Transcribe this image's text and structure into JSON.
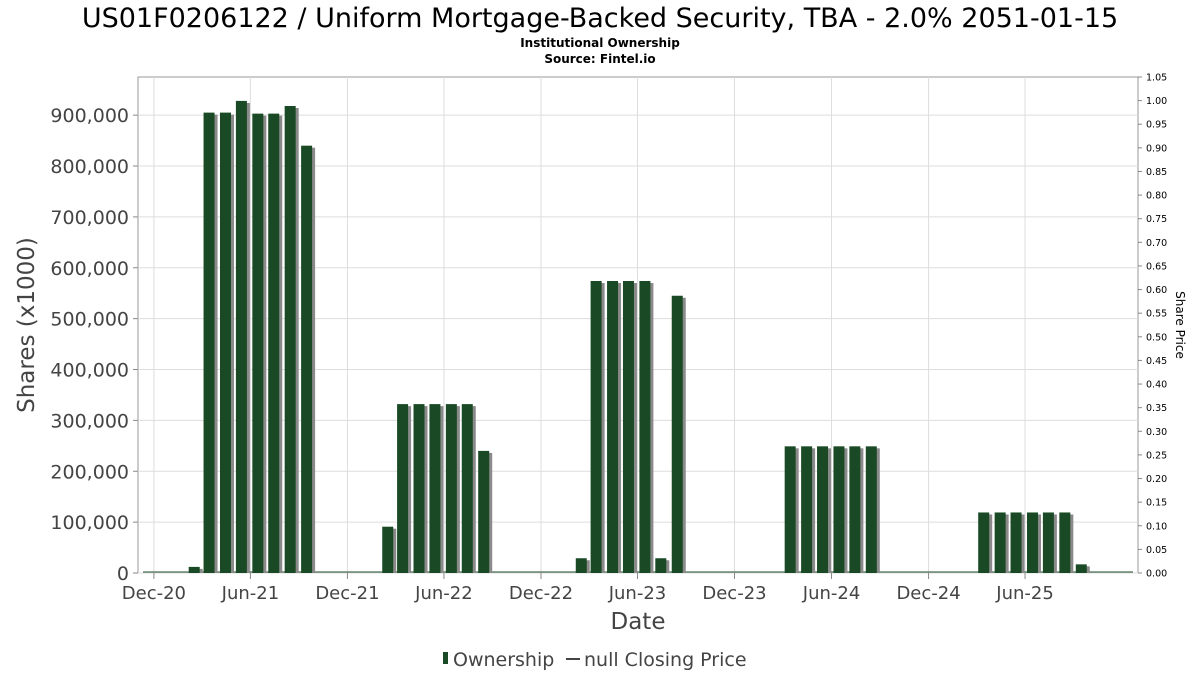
{
  "chart_data": {
    "type": "bar",
    "title": "US01F0206122 / Uniform Mortgage-Backed Security, TBA - 2.0% 2051-01-15",
    "subtitle": "Institutional Ownership",
    "source": "Source: Fintel.io",
    "xlabel": "Date",
    "ylabel": "Shares (x1000)",
    "ylabel_right": "Share Price",
    "ylim": [
      0,
      975000
    ],
    "ylim_right": [
      0,
      1.05
    ],
    "xlim": [
      "2020-11-01",
      "2025-12-31"
    ],
    "grid": true,
    "legend_placement": "bottom-center",
    "x_ticks": [
      {
        "date": "2020-12-01",
        "label": "Dec-20"
      },
      {
        "date": "2021-06-01",
        "label": "Jun-21"
      },
      {
        "date": "2021-12-01",
        "label": "Dec-21"
      },
      {
        "date": "2022-06-01",
        "label": "Jun-22"
      },
      {
        "date": "2022-12-01",
        "label": "Dec-22"
      },
      {
        "date": "2023-06-01",
        "label": "Jun-23"
      },
      {
        "date": "2023-12-01",
        "label": "Dec-23"
      },
      {
        "date": "2024-06-01",
        "label": "Jun-24"
      },
      {
        "date": "2024-12-01",
        "label": "Dec-24"
      },
      {
        "date": "2025-06-01",
        "label": "Jun-25"
      }
    ],
    "y_ticks": [
      {
        "value": 0,
        "label": "0"
      },
      {
        "value": 100000,
        "label": "100,000"
      },
      {
        "value": 200000,
        "label": "200,000"
      },
      {
        "value": 300000,
        "label": "300,000"
      },
      {
        "value": 400000,
        "label": "400,000"
      },
      {
        "value": 500000,
        "label": "500,000"
      },
      {
        "value": 600000,
        "label": "600,000"
      },
      {
        "value": 700000,
        "label": "700,000"
      },
      {
        "value": 800000,
        "label": "800,000"
      },
      {
        "value": 900000,
        "label": "900,000"
      }
    ],
    "y_ticks_right": [
      {
        "value": 0.0,
        "label": "0.00"
      },
      {
        "value": 0.05,
        "label": "0.05"
      },
      {
        "value": 0.1,
        "label": "0.10"
      },
      {
        "value": 0.15,
        "label": "0.15"
      },
      {
        "value": 0.2,
        "label": "0.20"
      },
      {
        "value": 0.25,
        "label": "0.25"
      },
      {
        "value": 0.3,
        "label": "0.30"
      },
      {
        "value": 0.35,
        "label": "0.35"
      },
      {
        "value": 0.4,
        "label": "0.40"
      },
      {
        "value": 0.45,
        "label": "0.45"
      },
      {
        "value": 0.5,
        "label": "0.50"
      },
      {
        "value": 0.55,
        "label": "0.55"
      },
      {
        "value": 0.6,
        "label": "0.60"
      },
      {
        "value": 0.65,
        "label": "0.65"
      },
      {
        "value": 0.7,
        "label": "0.70"
      },
      {
        "value": 0.75,
        "label": "0.75"
      },
      {
        "value": 0.8,
        "label": "0.80"
      },
      {
        "value": 0.85,
        "label": "0.85"
      },
      {
        "value": 0.9,
        "label": "0.90"
      },
      {
        "value": 0.95,
        "label": "0.95"
      },
      {
        "value": 1.0,
        "label": "1.00"
      },
      {
        "value": 1.05,
        "label": "1.05"
      }
    ],
    "series": [
      {
        "name": "Ownership",
        "color": "#1a4a25",
        "points": [
          {
            "date": "2021-02-15",
            "value": 12000
          },
          {
            "date": "2021-03-15",
            "value": 905000
          },
          {
            "date": "2021-04-15",
            "value": 905000
          },
          {
            "date": "2021-05-15",
            "value": 928000
          },
          {
            "date": "2021-06-15",
            "value": 903000
          },
          {
            "date": "2021-07-15",
            "value": 903000
          },
          {
            "date": "2021-08-15",
            "value": 918000
          },
          {
            "date": "2021-09-15",
            "value": 840000
          },
          {
            "date": "2022-02-15",
            "value": 91000
          },
          {
            "date": "2022-03-15",
            "value": 332000
          },
          {
            "date": "2022-04-15",
            "value": 332000
          },
          {
            "date": "2022-05-15",
            "value": 332000
          },
          {
            "date": "2022-06-15",
            "value": 332000
          },
          {
            "date": "2022-07-15",
            "value": 332000
          },
          {
            "date": "2022-08-15",
            "value": 240000
          },
          {
            "date": "2023-02-15",
            "value": 29000
          },
          {
            "date": "2023-03-15",
            "value": 574000
          },
          {
            "date": "2023-04-15",
            "value": 574000
          },
          {
            "date": "2023-05-15",
            "value": 574000
          },
          {
            "date": "2023-06-15",
            "value": 574000
          },
          {
            "date": "2023-07-15",
            "value": 29000
          },
          {
            "date": "2023-08-15",
            "value": 545000
          },
          {
            "date": "2024-03-15",
            "value": 249000
          },
          {
            "date": "2024-04-15",
            "value": 249000
          },
          {
            "date": "2024-05-15",
            "value": 249000
          },
          {
            "date": "2024-06-15",
            "value": 249000
          },
          {
            "date": "2024-07-15",
            "value": 249000
          },
          {
            "date": "2024-08-15",
            "value": 249000
          },
          {
            "date": "2025-03-15",
            "value": 119000
          },
          {
            "date": "2025-04-15",
            "value": 119000
          },
          {
            "date": "2025-05-15",
            "value": 119000
          },
          {
            "date": "2025-06-15",
            "value": 119000
          },
          {
            "date": "2025-07-15",
            "value": 119000
          },
          {
            "date": "2025-08-15",
            "value": 119000
          },
          {
            "date": "2025-09-15",
            "value": 17000
          }
        ]
      },
      {
        "name": "null Closing Price",
        "color": "#444444",
        "points": []
      }
    ]
  }
}
